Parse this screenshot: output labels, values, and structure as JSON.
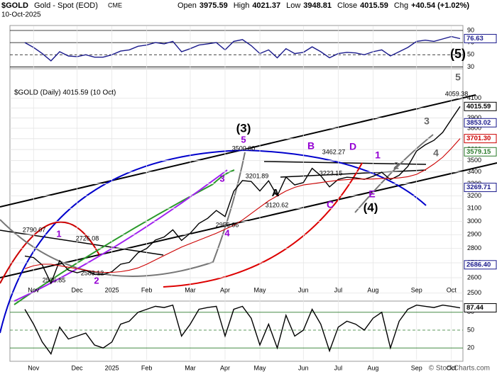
{
  "header": {
    "symbol": "$GOLD",
    "name": "Gold - Spot (EOD)",
    "exchange": "CME",
    "date": "10-Oct-2025",
    "quote": [
      {
        "label": "Open",
        "value": 3975.59
      },
      {
        "label": "High",
        "value": 4021.37
      },
      {
        "label": "Low",
        "value": 3948.81
      },
      {
        "label": "Close",
        "value": 4015.59
      },
      {
        "label": "Chg",
        "value": "+40.54 (+1.02%)"
      }
    ]
  },
  "credit": "© StockCharts.com",
  "chart_data": [
    {
      "type": "line",
      "ylim": [
        27,
        97
      ],
      "yticks": [
        90,
        70,
        50,
        30
      ],
      "grid": true,
      "series": [
        {
          "color": "#1a1a8c",
          "values": [
            70,
            62,
            52,
            40,
            55,
            48,
            47,
            50,
            46,
            46,
            50,
            56,
            58,
            64,
            66,
            70,
            68,
            72,
            55,
            60,
            66,
            68,
            70,
            58,
            72,
            75,
            65,
            52,
            58,
            45,
            60,
            52,
            54,
            63,
            55,
            45,
            52,
            54,
            53,
            50,
            55,
            58,
            48,
            55,
            62,
            72,
            74,
            72,
            76,
            80,
            76.63
          ]
        }
      ],
      "value_markers": [
        76.63
      ],
      "value_marker_colors": [
        "#1a1a8c"
      ]
    },
    {
      "type": "line",
      "log_scale": true,
      "ylim": [
        2450,
        4180
      ],
      "yticks": [
        2500,
        2600,
        2700,
        2800,
        2900,
        3000,
        3100,
        3200,
        3300,
        3400,
        3500,
        3600,
        3700,
        3800,
        3900,
        4000,
        4100
      ],
      "grid": true,
      "categories": [
        null,
        "Nov",
        null,
        null,
        null,
        null,
        "Dec",
        null,
        null,
        null,
        "2025",
        null,
        null,
        null,
        "Feb",
        null,
        null,
        null,
        null,
        "Mar",
        null,
        null,
        null,
        "Apr",
        null,
        null,
        null,
        "May",
        null,
        null,
        null,
        null,
        "Jun",
        null,
        null,
        null,
        "Jul",
        null,
        null,
        null,
        "Aug",
        null,
        null,
        null,
        null,
        "Sep",
        null,
        null,
        null,
        "Oct",
        null
      ],
      "series": [
        {
          "name": "$GOLD (Daily) 4015.59 (10 Oct)",
          "color": "#000000",
          "values": [
            2747,
            2736,
            2685,
            2563,
            2715,
            2650,
            2633,
            2648,
            2622,
            2621,
            2640,
            2690,
            2703,
            2770,
            2800,
            2861,
            2883,
            2936,
            2858,
            2910,
            2984,
            3023,
            3084,
            3037,
            3237,
            3327,
            3319,
            3240,
            3325,
            3200,
            3357,
            3290,
            3310,
            3432,
            3368,
            3274,
            3337,
            3355,
            3350,
            3337,
            3363,
            3398,
            3335,
            3372,
            3448,
            3586,
            3643,
            3685,
            3760,
            3886,
            4015.59
          ]
        },
        {
          "color": "#cc0000",
          "values": [
            2660,
            2680,
            2690,
            2690,
            2680,
            2670,
            2660,
            2650,
            2640,
            2635,
            2635,
            2640,
            2650,
            2665,
            2690,
            2720,
            2750,
            2780,
            2810,
            2835,
            2860,
            2885,
            2910,
            2940,
            2970,
            3010,
            3060,
            3110,
            3160,
            3200,
            3240,
            3270,
            3290,
            3300,
            3310,
            3320,
            3330,
            3335,
            3340,
            3340,
            3340,
            3345,
            3345,
            3350,
            3360,
            3380,
            3420,
            3470,
            3530,
            3610,
            3701.3
          ]
        }
      ],
      "value_markers": [
        4015.59,
        3853.02,
        {
          "value": 3701.3,
          "label": "3701.30"
        },
        3579.15,
        3269.71,
        {
          "value": 2686.4,
          "label": "2686.40"
        }
      ],
      "value_marker_colors": [
        "#000000",
        "#1a1a8c",
        "#cc0000",
        "#2a7a2a",
        "#1a1a8c",
        "#1a1a8c"
      ],
      "annotations": [
        {
          "text": "(3)",
          "color": "#000000"
        },
        {
          "text": "5",
          "color": "#9400d3"
        },
        {
          "text": "3500.00",
          "color": "#000000"
        },
        {
          "text": "3462.27",
          "color": "#000000"
        },
        {
          "text": "B",
          "color": "#9400d3"
        },
        {
          "text": "D",
          "color": "#9400d3"
        },
        {
          "text": "1",
          "color": "#9400d3"
        },
        {
          "text": "3201.89",
          "color": "#000000"
        },
        {
          "text": "3223.15",
          "color": "#000000"
        },
        {
          "text": "3120.62",
          "color": "#000000"
        },
        {
          "text": "A",
          "color": "#000000"
        },
        {
          "text": "E",
          "color": "#9400d3"
        },
        {
          "text": "C",
          "color": "#9400d3"
        },
        {
          "text": "(4)",
          "color": "#000000"
        },
        {
          "text": "2956.66",
          "color": "#000000"
        },
        {
          "text": "4",
          "color": "#9400d3"
        },
        {
          "text": "3",
          "color": "#9400d3"
        },
        {
          "text": "2790.07",
          "color": "#000000"
        },
        {
          "text": "1",
          "color": "#9400d3"
        },
        {
          "text": "2726.08",
          "color": "#000000"
        },
        {
          "text": "2583.12",
          "color": "#000000"
        },
        {
          "text": "2536.85",
          "color": "#000000"
        },
        {
          "text": "2",
          "color": "#9400d3"
        },
        {
          "text": "(5)",
          "color": "#000000"
        },
        {
          "text": "5",
          "color": "#666666"
        },
        {
          "text": "3",
          "color": "#666666"
        },
        {
          "text": "4",
          "color": "#666666"
        },
        {
          "text": "2",
          "color": "#666666"
        },
        {
          "text": "4059.38",
          "color": "#000000"
        }
      ]
    },
    {
      "type": "line",
      "ylim": [
        0,
        100
      ],
      "yticks": [
        80,
        50,
        20
      ],
      "grid": true,
      "series": [
        {
          "color": "#000000",
          "values": [
            85,
            60,
            30,
            10,
            55,
            35,
            40,
            45,
            25,
            20,
            30,
            60,
            65,
            80,
            85,
            90,
            88,
            92,
            40,
            60,
            85,
            88,
            90,
            40,
            85,
            90,
            70,
            25,
            60,
            20,
            75,
            40,
            50,
            85,
            60,
            15,
            55,
            65,
            60,
            50,
            70,
            80,
            20,
            65,
            85,
            92,
            90,
            88,
            92,
            90,
            87.44
          ]
        }
      ],
      "value_markers": [
        87.44
      ],
      "value_marker_colors": [
        "#000000"
      ]
    }
  ]
}
